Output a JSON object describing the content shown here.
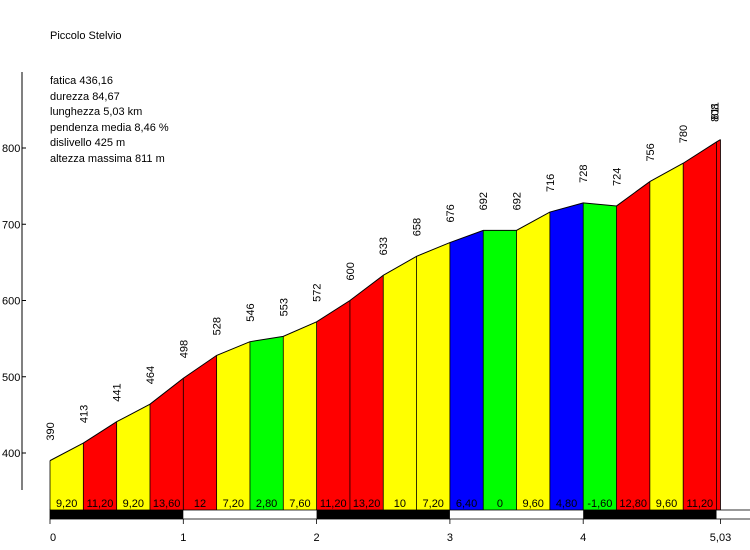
{
  "chart_data": {
    "type": "area",
    "title": "Piccolo Stelvio",
    "stats": [
      "fatica 436,16",
      "durezza 84,67",
      "lunghezza 5,03 km",
      "pendenza media 8,46 %",
      "dislivello 425 m",
      "altezza massima 811 m"
    ],
    "x_km": [
      0,
      0.25,
      0.5,
      0.75,
      1.0,
      1.25,
      1.5,
      1.75,
      2.0,
      2.25,
      2.5,
      2.75,
      3.0,
      3.25,
      3.5,
      3.75,
      4.0,
      4.25,
      4.5,
      4.75,
      5.0,
      5.03
    ],
    "elevation": [
      390,
      413,
      441,
      464,
      498,
      528,
      546,
      553,
      572,
      600,
      633,
      658,
      676,
      692,
      692,
      716,
      728,
      724,
      756,
      780,
      808,
      811
    ],
    "elevation_labels": [
      "390",
      "413",
      "441",
      "464",
      "498",
      "528",
      "546",
      "553",
      "572",
      "600",
      "633",
      "658",
      "676",
      "692",
      "692",
      "716",
      "728",
      "724",
      "756",
      "780",
      "808",
      "811"
    ],
    "segments": [
      {
        "grade": "9,20",
        "color": "#ffff00"
      },
      {
        "grade": "11,20",
        "color": "#ff0000"
      },
      {
        "grade": "9,20",
        "color": "#ffff00"
      },
      {
        "grade": "13,60",
        "color": "#ff0000"
      },
      {
        "grade": "12",
        "color": "#ff0000"
      },
      {
        "grade": "7,20",
        "color": "#ffff00"
      },
      {
        "grade": "2,80",
        "color": "#00ff00"
      },
      {
        "grade": "7,60",
        "color": "#ffff00"
      },
      {
        "grade": "11,20",
        "color": "#ff0000"
      },
      {
        "grade": "13,20",
        "color": "#ff0000"
      },
      {
        "grade": "10",
        "color": "#ffff00"
      },
      {
        "grade": "7,20",
        "color": "#ffff00"
      },
      {
        "grade": "6,40",
        "color": "#0000ff"
      },
      {
        "grade": "0",
        "color": "#00ff00"
      },
      {
        "grade": "9,60",
        "color": "#ffff00"
      },
      {
        "grade": "4,80",
        "color": "#0000ff"
      },
      {
        "grade": "-1,60",
        "color": "#00ff00"
      },
      {
        "grade": "12,80",
        "color": "#ff0000"
      },
      {
        "grade": "9,60",
        "color": "#ffff00"
      },
      {
        "grade": "11,20",
        "color": "#ff0000"
      },
      {
        "grade": "",
        "color": "#ff0000"
      }
    ],
    "x_ticks": [
      0,
      1,
      2,
      3,
      4,
      5.03
    ],
    "x_tick_labels": [
      "0",
      "1",
      "2",
      "3",
      "4",
      "5,03"
    ],
    "y_ticks": [
      400,
      500,
      600,
      700,
      800
    ],
    "y_tick_labels": [
      "400",
      "500",
      "600",
      "700",
      "800"
    ],
    "xlim": [
      0,
      5.03
    ],
    "ylim": [
      343,
      908
    ]
  }
}
